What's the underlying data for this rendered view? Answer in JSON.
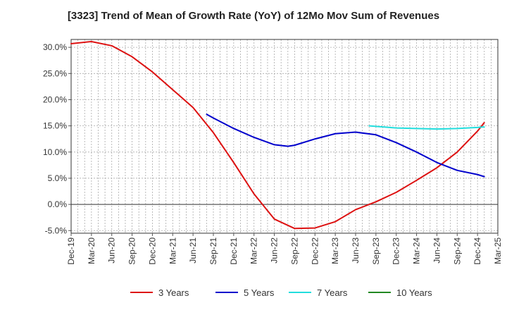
{
  "chart_data": {
    "type": "line",
    "title": "[3323]  Trend of Mean of Growth Rate (YoY) of 12Mo Mov Sum of Revenues",
    "xlabel": "",
    "ylabel": "",
    "x_ticks": [
      "Dec-19",
      "Mar-20",
      "Jun-20",
      "Sep-20",
      "Dec-20",
      "Mar-21",
      "Jun-21",
      "Sep-21",
      "Dec-21",
      "Mar-22",
      "Jun-22",
      "Sep-22",
      "Dec-22",
      "Mar-23",
      "Jun-23",
      "Sep-23",
      "Dec-23",
      "Mar-24",
      "Jun-24",
      "Sep-24",
      "Dec-24",
      "Mar-25"
    ],
    "y_ticks": [
      "30.0%",
      "25.0%",
      "20.0%",
      "15.0%",
      "10.0%",
      "5.0%",
      "0.0%",
      "-5.0%"
    ],
    "y_tick_values": [
      30,
      25,
      20,
      15,
      10,
      5,
      0,
      -5
    ],
    "ylim": [
      -5.5,
      31.5
    ],
    "grid": true,
    "legend_position": "bottom",
    "series": [
      {
        "name": "3 Years",
        "color": "#dd1111",
        "points": [
          [
            0,
            30.7
          ],
          [
            1,
            31.1
          ],
          [
            2,
            30.3
          ],
          [
            3,
            28.2
          ],
          [
            4,
            25.3
          ],
          [
            5,
            21.9
          ],
          [
            6,
            18.5
          ],
          [
            7,
            13.7
          ],
          [
            8,
            8.0
          ],
          [
            9,
            2.0
          ],
          [
            10,
            -2.8
          ],
          [
            11,
            -4.6
          ],
          [
            12,
            -4.5
          ],
          [
            13,
            -3.3
          ],
          [
            14,
            -1.0
          ],
          [
            15,
            0.5
          ],
          [
            16,
            2.3
          ],
          [
            17,
            4.6
          ],
          [
            18,
            7.0
          ],
          [
            19,
            10.0
          ],
          [
            20,
            14.0
          ],
          [
            20.33,
            15.6
          ]
        ]
      },
      {
        "name": "5 Years",
        "color": "#0000cc",
        "points": [
          [
            6.67,
            17.2
          ],
          [
            7,
            16.5
          ],
          [
            8,
            14.5
          ],
          [
            9,
            12.8
          ],
          [
            10,
            11.4
          ],
          [
            10.67,
            11.1
          ],
          [
            11,
            11.3
          ],
          [
            12,
            12.5
          ],
          [
            13,
            13.5
          ],
          [
            14,
            13.8
          ],
          [
            15,
            13.3
          ],
          [
            16,
            11.8
          ],
          [
            17,
            10.0
          ],
          [
            18,
            8.0
          ],
          [
            19,
            6.5
          ],
          [
            20,
            5.7
          ],
          [
            20.33,
            5.3
          ]
        ]
      },
      {
        "name": "7 Years",
        "color": "#22dddd",
        "points": [
          [
            14.67,
            15.0
          ],
          [
            15,
            14.9
          ],
          [
            16,
            14.6
          ],
          [
            17,
            14.5
          ],
          [
            18,
            14.4
          ],
          [
            19,
            14.5
          ],
          [
            20,
            14.7
          ],
          [
            20.33,
            14.8
          ]
        ]
      },
      {
        "name": "10 Years",
        "color": "#228822",
        "points": []
      }
    ]
  }
}
